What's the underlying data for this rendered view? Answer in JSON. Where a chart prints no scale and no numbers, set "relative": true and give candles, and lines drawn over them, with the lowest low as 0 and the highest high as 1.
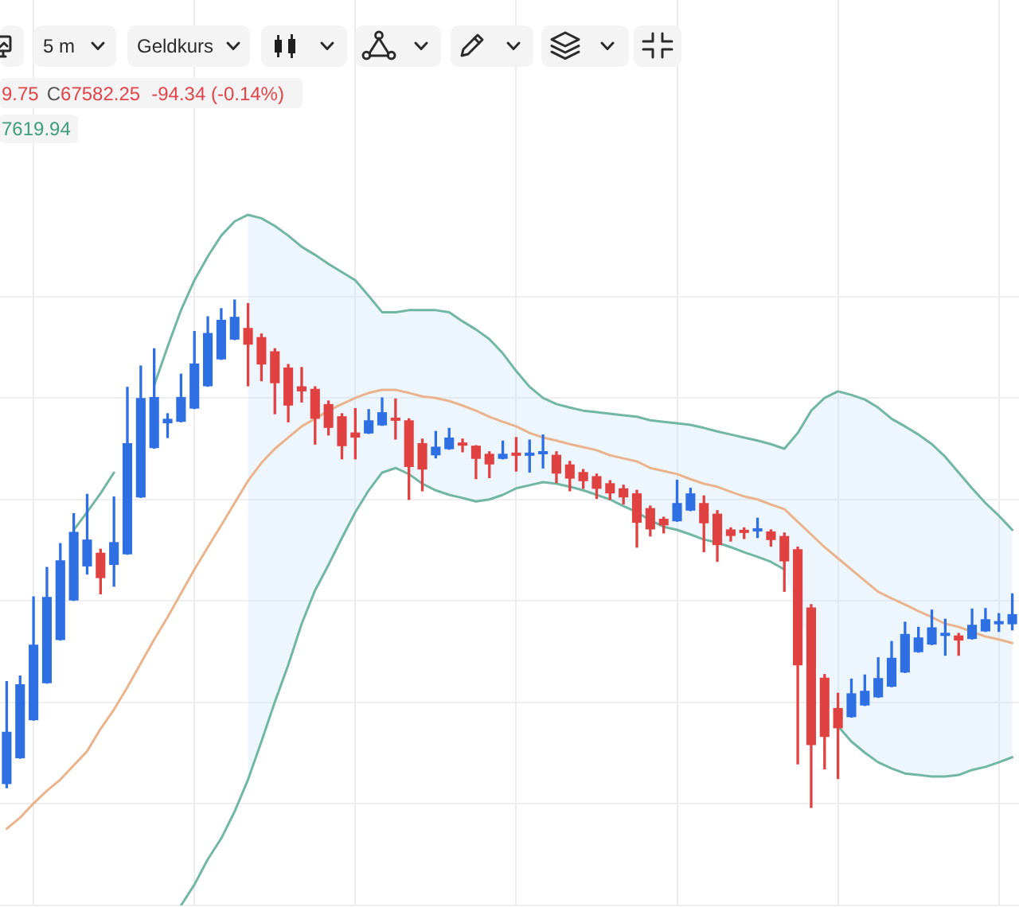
{
  "chart_data": {
    "type": "candlestick",
    "relative": true,
    "grid": true,
    "legend": false,
    "marker": "none",
    "tick_labels": false,
    "categories": [
      null,
      null,
      null,
      null,
      null,
      null,
      null,
      null,
      null,
      null,
      null,
      null,
      null,
      null,
      null,
      null,
      null,
      null,
      null,
      null,
      null,
      null,
      null,
      null,
      null,
      null,
      null,
      null,
      null,
      null,
      null,
      null,
      null,
      null,
      null,
      null,
      null,
      null,
      null,
      null,
      null,
      null,
      null,
      null,
      null,
      null,
      null,
      null,
      null,
      null,
      null,
      null,
      null,
      null,
      null,
      null,
      null,
      null,
      null,
      null,
      null,
      null,
      null,
      null,
      null,
      null,
      null,
      null,
      null,
      null,
      null,
      null,
      null,
      null,
      null,
      null
    ],
    "series": [
      {
        "ohlc": [
          [
            0.046,
            0.248,
            0.039,
            0.149
          ],
          [
            0.097,
            0.259,
            0.097,
            0.243
          ],
          [
            0.172,
            0.415,
            0.172,
            0.321
          ],
          [
            0.245,
            0.473,
            0.245,
            0.415
          ],
          [
            0.33,
            0.52,
            0.33,
            0.487
          ],
          [
            0.408,
            0.579,
            0.408,
            0.543
          ],
          [
            0.475,
            0.617,
            0.46,
            0.528
          ],
          [
            0.502,
            0.509,
            0.421,
            0.452
          ],
          [
            0.478,
            0.612,
            0.436,
            0.523
          ],
          [
            0.499,
            0.828,
            0.499,
            0.718
          ],
          [
            0.611,
            0.87,
            0.611,
            0.807
          ],
          [
            0.708,
            0.904,
            0.708,
            0.809
          ],
          [
            0.757,
            0.776,
            0.729,
            0.766
          ],
          [
            0.76,
            0.854,
            0.76,
            0.809
          ],
          [
            0.786,
            0.938,
            0.786,
            0.875
          ],
          [
            0.83,
            0.967,
            0.83,
            0.935
          ],
          [
            0.883,
            0.983,
            0.883,
            0.961
          ],
          [
            0.922,
            1,
            0.922,
            0.967
          ],
          [
            0.945,
            0.993,
            0.831,
            0.912
          ],
          [
            0.927,
            0.933,
            0.841,
            0.873
          ],
          [
            0.899,
            0.904,
            0.776,
            0.836
          ],
          [
            0.867,
            0.873,
            0.76,
            0.792
          ],
          [
            0.83,
            0.867,
            0.799,
            0.82
          ],
          [
            0.825,
            0.829,
            0.716,
            0.766
          ],
          [
            0.795,
            0.801,
            0.734,
            0.748
          ],
          [
            0.771,
            0.776,
            0.687,
            0.712
          ],
          [
            0.739,
            0.786,
            0.687,
            0.729
          ],
          [
            0.737,
            0.784,
            0.737,
            0.763
          ],
          [
            0.753,
            0.807,
            0.753,
            0.779
          ],
          [
            0.765,
            0.805,
            0.726,
            0.762
          ],
          [
            0.763,
            0.766,
            0.607,
            0.671
          ],
          [
            0.718,
            0.726,
            0.624,
            0.666
          ],
          [
            0.694,
            0.741,
            0.689,
            0.711
          ],
          [
            0.706,
            0.747,
            0.706,
            0.729
          ],
          [
            0.718,
            0.726,
            0.701,
            0.713
          ],
          [
            0.713,
            0.713,
            0.648,
            0.687
          ],
          [
            0.697,
            0.701,
            0.65,
            0.676
          ],
          [
            0.687,
            0.722,
            0.687,
            0.697
          ],
          [
            0.695,
            0.729,
            0.663,
            0.693
          ],
          [
            0.693,
            0.724,
            0.661,
            0.695
          ],
          [
            0.696,
            0.734,
            0.669,
            0.699
          ],
          [
            0.695,
            0.701,
            0.64,
            0.658
          ],
          [
            0.676,
            0.682,
            0.624,
            0.648
          ],
          [
            0.661,
            0.666,
            0.629,
            0.643
          ],
          [
            0.653,
            0.657,
            0.609,
            0.628
          ],
          [
            0.639,
            0.644,
            0.607,
            0.619
          ],
          [
            0.629,
            0.635,
            0.598,
            0.611
          ],
          [
            0.619,
            0.625,
            0.513,
            0.561
          ],
          [
            0.59,
            0.594,
            0.535,
            0.548
          ],
          [
            0.569,
            0.572,
            0.541,
            0.556
          ],
          [
            0.564,
            0.645,
            0.564,
            0.6
          ],
          [
            0.585,
            0.629,
            0.585,
            0.619
          ],
          [
            0.6,
            0.614,
            0.504,
            0.56
          ],
          [
            0.579,
            0.585,
            0.485,
            0.517
          ],
          [
            0.548,
            0.551,
            0.525,
            0.535
          ],
          [
            0.544,
            0.551,
            0.53,
            0.541
          ],
          [
            0.544,
            0.57,
            0.532,
            0.546
          ],
          [
            0.544,
            0.547,
            0.515,
            0.527
          ],
          [
            0.535,
            0.541,
            0.426,
            0.485
          ],
          [
            0.509,
            0.513,
            0.086,
            0.28
          ],
          [
            0.394,
            0.4,
            0,
            0.123
          ],
          [
            0.256,
            0.262,
            0.076,
            0.139
          ],
          [
            0.196,
            0.225,
            0.057,
            0.156
          ],
          [
            0.178,
            0.253,
            0.178,
            0.225
          ],
          [
            0.201,
            0.261,
            0.201,
            0.23
          ],
          [
            0.217,
            0.295,
            0.217,
            0.255
          ],
          [
            0.238,
            0.327,
            0.238,
            0.295
          ],
          [
            0.266,
            0.365,
            0.266,
            0.342
          ],
          [
            0.306,
            0.355,
            0.306,
            0.335
          ],
          [
            0.321,
            0.389,
            0.321,
            0.355
          ],
          [
            0.338,
            0.371,
            0.3,
            0.34
          ],
          [
            0.339,
            0.343,
            0.3,
            0.329
          ],
          [
            0.332,
            0.391,
            0.332,
            0.36
          ],
          [
            0.347,
            0.392,
            0.347,
            0.371
          ],
          [
            0.361,
            0.382,
            0.347,
            0.363
          ],
          [
            0.361,
            0.421,
            0.35,
            0.381
          ]
        ],
        "colors": [
          "#2f6fe4",
          "#2f6fe4",
          "#2f6fe4",
          "#2f6fe4",
          "#2f6fe4",
          "#2f6fe4",
          "#2f6fe4",
          "#e04242",
          "#2f6fe4",
          "#2f6fe4",
          "#2f6fe4",
          "#2f6fe4",
          "#2f6fe4",
          "#2f6fe4",
          "#2f6fe4",
          "#2f6fe4",
          "#2f6fe4",
          "#2f6fe4",
          "#e04242",
          "#e04242",
          "#e04242",
          "#e04242",
          "#e04242",
          "#e04242",
          "#e04242",
          "#e04242",
          "#e04242",
          "#2f6fe4",
          "#2f6fe4",
          "#e04242",
          "#e04242",
          "#e04242",
          "#2f6fe4",
          "#2f6fe4",
          "#e04242",
          "#e04242",
          "#e04242",
          "#2f6fe4",
          "#e04242",
          "#2f6fe4",
          "#2f6fe4",
          "#e04242",
          "#e04242",
          "#e04242",
          "#e04242",
          "#e04242",
          "#e04242",
          "#e04242",
          "#e04242",
          "#e04242",
          "#2f6fe4",
          "#2f6fe4",
          "#e04242",
          "#e04242",
          "#e04242",
          "#e04242",
          "#2f6fe4",
          "#e04242",
          "#e04242",
          "#e04242",
          "#e04242",
          "#e04242",
          "#e04242",
          "#2f6fe4",
          "#2f6fe4",
          "#2f6fe4",
          "#2f6fe4",
          "#2f6fe4",
          "#2f6fe4",
          "#2f6fe4",
          "#2f6fe4",
          "#e04242",
          "#2f6fe4",
          "#2f6fe4",
          "#2f6fe4",
          "#2f6fe4"
        ]
      },
      {
        "type": "line",
        "color": "#e9b48c",
        "values": [
          -0.042,
          -0.02,
          0.008,
          0.033,
          0.055,
          0.083,
          0.111,
          0.155,
          0.193,
          0.237,
          0.284,
          0.331,
          0.375,
          0.422,
          0.469,
          0.513,
          0.556,
          0.6,
          0.644,
          0.679,
          0.707,
          0.729,
          0.751,
          0.766,
          0.782,
          0.795,
          0.807,
          0.817,
          0.823,
          0.823,
          0.817,
          0.81,
          0.807,
          0.801,
          0.792,
          0.782,
          0.77,
          0.76,
          0.751,
          0.738,
          0.729,
          0.723,
          0.716,
          0.71,
          0.704,
          0.694,
          0.688,
          0.682,
          0.669,
          0.663,
          0.657,
          0.647,
          0.638,
          0.632,
          0.622,
          0.613,
          0.607,
          0.597,
          0.588,
          0.563,
          0.538,
          0.513,
          0.491,
          0.469,
          0.447,
          0.425,
          0.412,
          0.4,
          0.387,
          0.375,
          0.362,
          0.356,
          0.346,
          0.337,
          0.331,
          0.324
        ],
        "upper": [
          null,
          null,
          null,
          null,
          null,
          null,
          null,
          null,
          null,
          null,
          null,
          null,
          null,
          null,
          null,
          null,
          null,
          null,
          1.168,
          1.161,
          1.146,
          1.127,
          1.105,
          1.089,
          1.071,
          1.055,
          1.039,
          1.008,
          0.976,
          0.976,
          0.98,
          0.98,
          0.98,
          0.976,
          0.958,
          0.942,
          0.923,
          0.895,
          0.86,
          0.829,
          0.807,
          0.795,
          0.788,
          0.782,
          0.779,
          0.776,
          0.773,
          0.77,
          0.763,
          0.76,
          0.757,
          0.754,
          0.748,
          0.741,
          0.735,
          0.729,
          0.723,
          0.716,
          0.707,
          0.738,
          0.782,
          0.807,
          0.82,
          0.813,
          0.804,
          0.788,
          0.766,
          0.751,
          0.735,
          0.716,
          0.691,
          0.66,
          0.629,
          0.6,
          0.575,
          0.547
        ],
        "lower": [
          null,
          null,
          null,
          null,
          null,
          null,
          null,
          null,
          null,
          null,
          null,
          null,
          null,
          null,
          null,
          null,
          null,
          null,
          0.055,
          0.13,
          0.208,
          0.281,
          0.362,
          0.428,
          0.478,
          0.531,
          0.582,
          0.625,
          0.66,
          0.669,
          0.657,
          0.638,
          0.625,
          0.616,
          0.61,
          0.603,
          0.607,
          0.616,
          0.629,
          0.635,
          0.641,
          0.638,
          0.632,
          0.625,
          0.616,
          0.607,
          0.594,
          0.582,
          0.566,
          0.553,
          0.547,
          0.538,
          0.528,
          0.522,
          0.513,
          0.503,
          0.494,
          0.484,
          0.469,
          0.384,
          0.306,
          0.227,
          0.16,
          0.13,
          0.108,
          0.089,
          0.077,
          0.067,
          0.064,
          0.061,
          0.061,
          0.064,
          0.074,
          0.08,
          0.089,
          0.099
        ]
      },
      {
        "type": "line",
        "color": "#72b6a4",
        "values": [
          null,
          null,
          null,
          null,
          null,
          0.547,
          0.582,
          0.619,
          0.66,
          null,
          null,
          0.832,
          0.908,
          0.98,
          1.039,
          1.086,
          1.127,
          1.155,
          1.168,
          1.161,
          1.146,
          1.127,
          1.105,
          1.089,
          1.071,
          1.055,
          1.039,
          1.008,
          0.976,
          0.976,
          0.98,
          0.98,
          0.98,
          0.976,
          0.958,
          0.942,
          0.923,
          0.895,
          0.86,
          0.829,
          0.807,
          0.795,
          0.788,
          0.782,
          0.779,
          0.776,
          0.773,
          0.77,
          0.763,
          0.76,
          0.757,
          0.754,
          0.748,
          0.741,
          0.735,
          0.729,
          0.723,
          0.716,
          0.707,
          0.738,
          0.782,
          0.807,
          0.82,
          0.813,
          0.804,
          0.788,
          0.766,
          0.751,
          0.735,
          0.716,
          0.691,
          0.66,
          0.629,
          0.6,
          0.575,
          0.547
        ]
      },
      {
        "type": "line",
        "color": "#72b6a4",
        "values": [
          null,
          null,
          null,
          null,
          null,
          null,
          null,
          null,
          null,
          null,
          null,
          null,
          null,
          -0.193,
          -0.152,
          -0.102,
          -0.061,
          -0.008,
          0.055,
          0.13,
          0.208,
          0.281,
          0.362,
          0.428,
          0.478,
          0.531,
          0.582,
          0.625,
          0.66,
          0.669,
          0.657,
          0.638,
          0.625,
          0.616,
          0.61,
          0.603,
          0.607,
          0.616,
          0.629,
          0.635,
          0.641,
          0.638,
          0.632,
          0.625,
          0.616,
          0.607,
          0.594,
          0.582,
          0.566,
          0.553,
          0.547,
          0.538,
          0.528,
          0.522,
          0.513,
          0.503,
          0.494,
          0.484,
          0.469,
          null,
          null,
          null,
          0.16,
          0.13,
          0.108,
          0.089,
          0.077,
          0.067,
          0.064,
          0.061,
          0.061,
          0.064,
          0.074,
          0.08,
          0.089,
          0.099
        ]
      }
    ],
    "annotations": [
      "5 m",
      "Geldkurs",
      "9.75",
      "C",
      "67582.25",
      "-94.34 (-0.14%)",
      "7619.94"
    ]
  }
}
